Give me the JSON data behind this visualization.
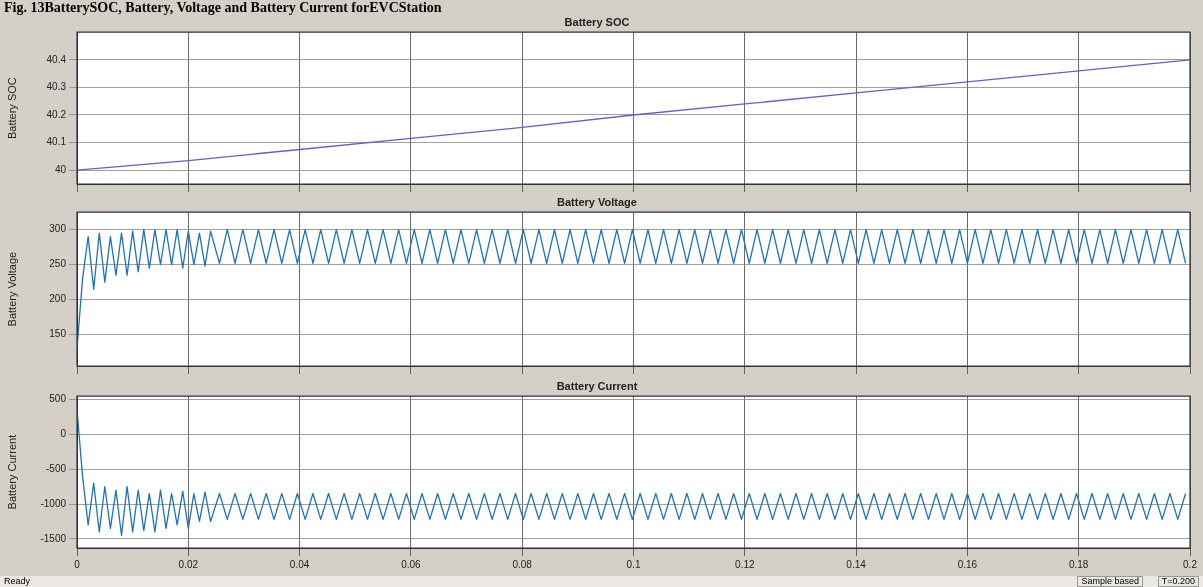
{
  "chart_data": [
    {
      "type": "line",
      "title": "Battery SOC",
      "ylabel": "Battery SOC",
      "annotations": [
        "Fig. 13BatterySOC, Battery, Voltage and Battery Current forEVCStation"
      ],
      "x": [
        0,
        0.02,
        0.04,
        0.06,
        0.08,
        0.1,
        0.12,
        0.14,
        0.16,
        0.18,
        0.2
      ],
      "series": [
        {
          "color": "#6a5ad8",
          "values": [
            40,
            40.035,
            40.075,
            40.115,
            40.155,
            40.2,
            40.24,
            40.28,
            40.32,
            40.36,
            40.4
          ]
        }
      ],
      "xlim": [
        0,
        0.2
      ],
      "xticks": [
        0,
        0.02,
        0.04,
        0.06,
        0.08,
        0.1,
        0.12,
        0.14,
        0.16,
        0.18,
        0.2
      ],
      "ylim": [
        39.95,
        40.5
      ],
      "yticks": [
        40,
        40.1,
        40.2,
        40.3,
        40.4
      ],
      "grid": true,
      "tick_labels": "y",
      "marker": "none"
    },
    {
      "type": "line",
      "title": "Battery Voltage",
      "ylabel": "Battery Voltage",
      "x": [
        0,
        0.001,
        0.002,
        0.003,
        0.004,
        0.005,
        0.006,
        0.007,
        0.008,
        0.009,
        0.01,
        0.011,
        0.012,
        0.013,
        0.014,
        0.015,
        0.016,
        0.017,
        0.018,
        0.019,
        0.02,
        0.021,
        0.022,
        0.023,
        0.024,
        0.0256,
        0.027,
        0.0284,
        0.0298,
        0.0312,
        0.0326,
        0.034,
        0.0354,
        0.0368,
        0.0382,
        0.0396,
        0.041,
        0.0424,
        0.0438,
        0.0452,
        0.0466,
        0.048,
        0.0494,
        0.0508,
        0.0522,
        0.0536,
        0.055,
        0.0564,
        0.0578,
        0.0592,
        0.0606,
        0.062,
        0.0634,
        0.0648,
        0.0662,
        0.0676,
        0.069,
        0.0704,
        0.0718,
        0.0732,
        0.0746,
        0.076,
        0.0774,
        0.0788,
        0.0802,
        0.0816,
        0.083,
        0.0844,
        0.0858,
        0.0872,
        0.0886,
        0.09,
        0.0914,
        0.0928,
        0.0942,
        0.0956,
        0.097,
        0.0984,
        0.0998,
        0.1012,
        0.1026,
        0.104,
        0.1054,
        0.1068,
        0.1082,
        0.1096,
        0.111,
        0.1124,
        0.1138,
        0.1152,
        0.1166,
        0.118,
        0.1194,
        0.1208,
        0.1222,
        0.1236,
        0.125,
        0.1264,
        0.1278,
        0.1292,
        0.1306,
        0.132,
        0.1334,
        0.1348,
        0.1362,
        0.1376,
        0.139,
        0.1404,
        0.1418,
        0.1432,
        0.1446,
        0.146,
        0.1474,
        0.1488,
        0.1502,
        0.1516,
        0.153,
        0.1544,
        0.1558,
        0.1572,
        0.1586,
        0.16,
        0.1614,
        0.1628,
        0.1642,
        0.1656,
        0.167,
        0.1684,
        0.1698,
        0.1712,
        0.1726,
        0.174,
        0.1754,
        0.1768,
        0.1782,
        0.1796,
        0.181,
        0.1824,
        0.1838,
        0.1852,
        0.1866,
        0.188,
        0.1894,
        0.1908,
        0.1922,
        0.1936,
        0.195,
        0.1964,
        0.1978,
        0.1992
      ],
      "series": [
        {
          "color": "#1f72c0",
          "values": [
            130,
            230,
            290,
            215,
            295,
            225,
            290,
            235,
            295,
            235,
            298,
            240,
            300,
            245,
            300,
            250,
            300,
            250,
            300,
            245,
            298,
            250,
            295,
            248,
            298,
            252,
            300,
            252,
            300,
            252,
            300,
            252,
            300,
            252,
            300,
            252,
            300,
            252,
            300,
            252,
            300,
            252,
            300,
            252,
            300,
            252,
            300,
            252,
            300,
            252,
            300,
            252,
            300,
            252,
            300,
            252,
            300,
            252,
            300,
            252,
            300,
            252,
            300,
            252,
            300,
            252,
            300,
            252,
            300,
            252,
            300,
            252,
            300,
            252,
            300,
            252,
            300,
            252,
            300,
            252,
            300,
            252,
            300,
            252,
            300,
            252,
            300,
            252,
            300,
            252,
            300,
            252,
            300,
            252,
            300,
            252,
            300,
            252,
            300,
            252,
            300,
            252,
            300,
            252,
            300,
            252,
            300,
            252,
            300,
            252,
            300,
            252,
            300,
            252,
            300,
            252,
            300,
            252,
            300,
            252,
            300,
            252,
            300,
            252,
            300,
            252,
            300,
            252,
            300,
            252,
            300,
            252,
            300,
            252,
            300,
            252,
            300,
            252,
            300,
            252,
            300,
            252,
            300,
            252,
            300,
            252,
            300,
            252,
            300,
            252
          ]
        }
      ],
      "xlim": [
        0,
        0.2
      ],
      "xticks": [
        0,
        0.02,
        0.04,
        0.06,
        0.08,
        0.1,
        0.12,
        0.14,
        0.16,
        0.18,
        0.2
      ],
      "ylim": [
        105,
        325
      ],
      "yticks": [
        150,
        200,
        250,
        300
      ],
      "grid": true,
      "tick_labels": "y",
      "marker": "none"
    },
    {
      "type": "line",
      "title": "Battery Current",
      "ylabel": "Battery Current",
      "annotations": [
        "Ready",
        "Sample based",
        "T=0.200"
      ],
      "x": [
        0,
        0.001,
        0.002,
        0.003,
        0.004,
        0.005,
        0.006,
        0.007,
        0.008,
        0.009,
        0.01,
        0.011,
        0.012,
        0.013,
        0.014,
        0.015,
        0.016,
        0.017,
        0.018,
        0.019,
        0.02,
        0.021,
        0.022,
        0.023,
        0.024,
        0.0256,
        0.027,
        0.0284,
        0.0298,
        0.0312,
        0.0326,
        0.034,
        0.0354,
        0.0368,
        0.0382,
        0.0396,
        0.041,
        0.0424,
        0.0438,
        0.0452,
        0.0466,
        0.048,
        0.0494,
        0.0508,
        0.0522,
        0.0536,
        0.055,
        0.0564,
        0.0578,
        0.0592,
        0.0606,
        0.062,
        0.0634,
        0.0648,
        0.0662,
        0.0676,
        0.069,
        0.0704,
        0.0718,
        0.0732,
        0.0746,
        0.076,
        0.0774,
        0.0788,
        0.0802,
        0.0816,
        0.083,
        0.0844,
        0.0858,
        0.0872,
        0.0886,
        0.09,
        0.0914,
        0.0928,
        0.0942,
        0.0956,
        0.097,
        0.0984,
        0.0998,
        0.1012,
        0.1026,
        0.104,
        0.1054,
        0.1068,
        0.1082,
        0.1096,
        0.111,
        0.1124,
        0.1138,
        0.1152,
        0.1166,
        0.118,
        0.1194,
        0.1208,
        0.1222,
        0.1236,
        0.125,
        0.1264,
        0.1278,
        0.1292,
        0.1306,
        0.132,
        0.1334,
        0.1348,
        0.1362,
        0.1376,
        0.139,
        0.1404,
        0.1418,
        0.1432,
        0.1446,
        0.146,
        0.1474,
        0.1488,
        0.1502,
        0.1516,
        0.153,
        0.1544,
        0.1558,
        0.1572,
        0.1586,
        0.16,
        0.1614,
        0.1628,
        0.1642,
        0.1656,
        0.167,
        0.1684,
        0.1698,
        0.1712,
        0.1726,
        0.174,
        0.1754,
        0.1768,
        0.1782,
        0.1796,
        0.181,
        0.1824,
        0.1838,
        0.1852,
        0.1866,
        0.188,
        0.1894,
        0.1908,
        0.1922,
        0.1936,
        0.195,
        0.1964,
        0.1978,
        0.1992
      ],
      "series": [
        {
          "color": "#1f72c0",
          "values": [
            350,
            -600,
            -1300,
            -700,
            -1400,
            -750,
            -1350,
            -800,
            -1450,
            -750,
            -1400,
            -800,
            -1380,
            -850,
            -1400,
            -800,
            -1350,
            -850,
            -1300,
            -820,
            -1350,
            -850,
            -1250,
            -830,
            -1250,
            -850,
            -1220,
            -850,
            -1220,
            -850,
            -1220,
            -850,
            -1220,
            -850,
            -1220,
            -850,
            -1220,
            -850,
            -1220,
            -850,
            -1220,
            -850,
            -1220,
            -850,
            -1220,
            -850,
            -1220,
            -850,
            -1220,
            -850,
            -1220,
            -850,
            -1220,
            -850,
            -1220,
            -850,
            -1220,
            -850,
            -1220,
            -850,
            -1220,
            -850,
            -1220,
            -850,
            -1220,
            -850,
            -1220,
            -850,
            -1220,
            -850,
            -1220,
            -850,
            -1220,
            -850,
            -1220,
            -850,
            -1220,
            -850,
            -1220,
            -850,
            -1220,
            -850,
            -1220,
            -850,
            -1220,
            -850,
            -1220,
            -850,
            -1220,
            -850,
            -1220,
            -850,
            -1220,
            -850,
            -1220,
            -850,
            -1220,
            -850,
            -1220,
            -850,
            -1220,
            -850,
            -1220,
            -850,
            -1220,
            -850,
            -1220,
            -850,
            -1220,
            -850,
            -1220,
            -850,
            -1220,
            -850,
            -1220,
            -850,
            -1220,
            -850,
            -1220,
            -850,
            -1220,
            -850,
            -1220,
            -850,
            -1220,
            -850,
            -1220,
            -850,
            -1220,
            -850,
            -1220,
            -850,
            -1220,
            -850,
            -1220,
            -850,
            -1220,
            -850,
            -1220,
            -850,
            -1220,
            -850,
            -1220,
            -850,
            -1220,
            -850,
            -1220,
            -850,
            -1220,
            -850
          ]
        }
      ],
      "xlim": [
        0,
        0.2
      ],
      "xticks": [
        0,
        0.02,
        0.04,
        0.06,
        0.08,
        0.1,
        0.12,
        0.14,
        0.16,
        0.18,
        0.2
      ],
      "ylim": [
        -1630,
        545
      ],
      "yticks": [
        500,
        0,
        -500,
        -1000,
        -1500
      ],
      "grid": true,
      "marker": "none"
    }
  ]
}
